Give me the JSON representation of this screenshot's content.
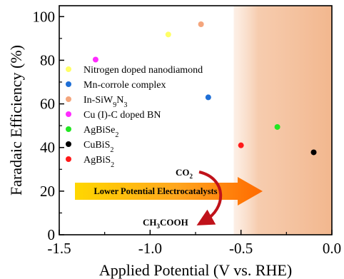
{
  "chart_data": {
    "type": "scatter",
    "xlabel": "Applied Potential (V vs. RHE)",
    "ylabel": "Faradaic Efficiency (%)",
    "xlim": [
      -1.5,
      0.0
    ],
    "ylim": [
      0,
      105
    ],
    "xticks": [
      "-1.5",
      "-1.0",
      "-0.5",
      "0.0"
    ],
    "xtick_values": [
      -1.5,
      -1.0,
      -0.5,
      0.0
    ],
    "yticks": [
      "0",
      "20",
      "40",
      "60",
      "80",
      "100"
    ],
    "ytick_values": [
      0,
      20,
      40,
      60,
      80,
      100
    ],
    "shaded_region": {
      "x_from": -0.54,
      "x_to": 0.0,
      "color": "#f2b78e"
    },
    "legend_placement": "left-middle",
    "series": [
      {
        "name": "Nitrogen doped nanodiamond",
        "color": "#ffff66",
        "x": [
          -0.9
        ],
        "y": [
          91.8
        ]
      },
      {
        "name": "Mn-corrole complex",
        "color": "#1f6fd6",
        "x": [
          -0.68
        ],
        "y": [
          63
        ]
      },
      {
        "name": "In-SiW9N3",
        "color": "#f4a57c",
        "x": [
          -0.72
        ],
        "y": [
          96.5
        ]
      },
      {
        "name": "Cu (I)-C doped BN",
        "color": "#ff2bff",
        "x": [
          -1.3
        ],
        "y": [
          80.3
        ]
      },
      {
        "name": "AgBiSe2",
        "color": "#22e622",
        "x": [
          -0.3
        ],
        "y": [
          49.4
        ]
      },
      {
        "name": "CuBiS2",
        "color": "#000000",
        "x": [
          -0.1
        ],
        "y": [
          37.8
        ]
      },
      {
        "name": "AgBiS2",
        "color": "#ff1a1a",
        "x": [
          -0.5
        ],
        "y": [
          41
        ]
      }
    ],
    "annotations": {
      "arrow_label": "Lower Potential Electrocatalysts",
      "reactant": {
        "base": "CO",
        "sub": "2"
      },
      "product": {
        "part1": "CH",
        "sub1": "3",
        "part2": "COOH"
      }
    }
  }
}
